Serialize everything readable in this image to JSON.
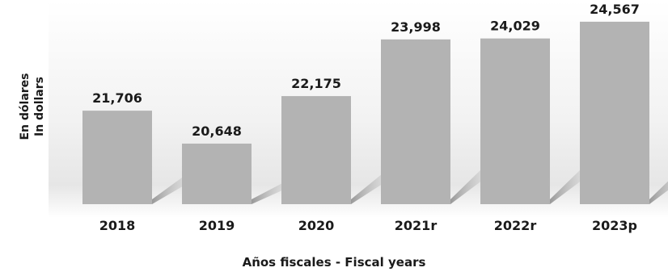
{
  "chart_data": {
    "type": "bar",
    "categories": [
      "2018",
      "2019",
      "2020",
      "2021r",
      "2022r",
      "2023p"
    ],
    "values": [
      21706,
      20648,
      22175,
      23998,
      24029,
      24567
    ],
    "value_labels": [
      "21,706",
      "20,648",
      "22,175",
      "23,998",
      "24,029",
      "24,567"
    ],
    "title": "",
    "xlabel": "Años fiscales - Fiscal years",
    "ylabel": [
      "En dólares",
      "In dollars"
    ],
    "ylim": [
      18700,
      24850
    ],
    "grid": false,
    "legend": "none",
    "colors": {
      "bar": "#b3b3b3",
      "shadow": "#9a9a9a",
      "text": "#1a1a1a"
    }
  }
}
